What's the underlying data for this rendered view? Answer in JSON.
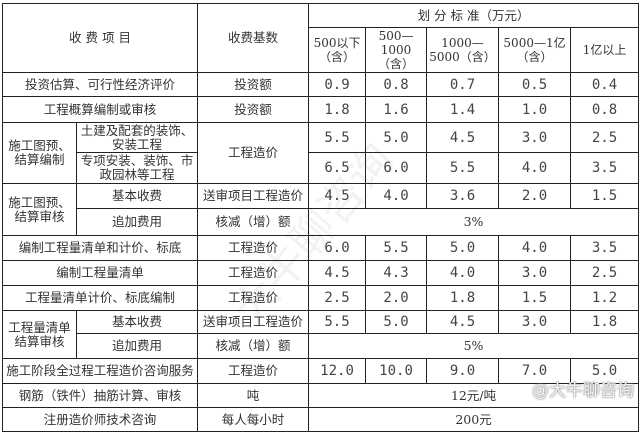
{
  "header": {
    "item": "收 费 项 目",
    "base": "收费基数",
    "standard": "划 分 标 准（万元）",
    "ranges": [
      "500以下（含）",
      "500—1000（含）",
      "1000—5000（含）",
      "5000—1亿（含）",
      "1亿以上"
    ]
  },
  "rows": [
    {
      "item": "投资估算、可行性经济评价",
      "base": "投资额",
      "values": [
        "0.9",
        "0.8",
        "0.7",
        "0.5",
        "0.4"
      ]
    },
    {
      "item": "工程概算编制或审核",
      "base": "投资额",
      "values": [
        "1.8",
        "1.6",
        "1.4",
        "1.0",
        "0.8"
      ]
    },
    {
      "group": "施工图预、结算编制",
      "base": "工程造价",
      "sub": [
        {
          "item": "土建及配套的装饰、安装工程",
          "values": [
            "5.5",
            "5.0",
            "4.5",
            "3.0",
            "2.5"
          ]
        },
        {
          "item": "专项安装、装饰、市政园林等工程",
          "values": [
            "6.5",
            "6.0",
            "5.5",
            "4.0",
            "3.5"
          ]
        }
      ]
    },
    {
      "group": "施工图预、结算审核",
      "sub": [
        {
          "item": "基本收费",
          "base": "送审项目工程造价",
          "values": [
            "4.5",
            "4.0",
            "3.6",
            "2.0",
            "1.5"
          ]
        },
        {
          "item": "追加费用",
          "base": "核减（增）额",
          "merged": "3%"
        }
      ]
    },
    {
      "item": "编制工程量清单和计价、标底",
      "base": "工程造价",
      "values": [
        "6.0",
        "5.5",
        "5.0",
        "4.0",
        "3.5"
      ]
    },
    {
      "item": "编制工程量清单",
      "base": "工程造价",
      "values": [
        "4.5",
        "4.3",
        "4.0",
        "3.0",
        "2.5"
      ]
    },
    {
      "item": "工程量清单计价、标底编制",
      "base": "工程造价",
      "values": [
        "2.5",
        "2.0",
        "1.8",
        "1.5",
        "1.2"
      ]
    },
    {
      "group": "工程量清单结算审核",
      "sub": [
        {
          "item": "基本收费",
          "base": "送审项目工程造价",
          "values": [
            "5.5",
            "5.0",
            "4.5",
            "3.0",
            "1.8"
          ]
        },
        {
          "item": "追加费用",
          "base": "核减（增）额",
          "merged": "5%"
        }
      ]
    },
    {
      "item": "施工阶段全过程工程造价咨询服务",
      "base": "工程造价",
      "values": [
        "12.0",
        "10.0",
        "9.0",
        "7.0",
        "5.0"
      ]
    },
    {
      "item": "钢筋（铁件）抽筋计算、审核",
      "base": "吨",
      "merged": "12元/吨"
    },
    {
      "item": "注册造价师技术咨询",
      "base": "每人每小时",
      "merged": "200元"
    }
  ],
  "watermark": "@大牛聊咨询",
  "diagonal_watermark": "大牛聊咨询"
}
